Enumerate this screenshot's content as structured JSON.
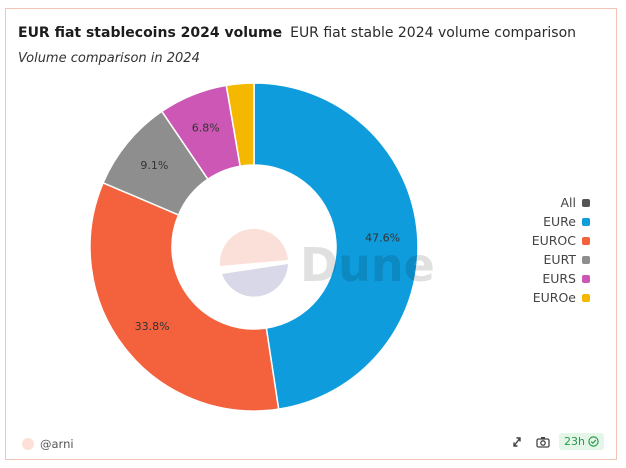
{
  "header": {
    "title": "EUR fiat stablecoins 2024 volume",
    "title_secondary": "EUR fiat stable 2024 volume comparison",
    "subtitle": "Volume comparison in 2024"
  },
  "chart_data": {
    "type": "pie",
    "donut": true,
    "slices": [
      {
        "name": "EURe",
        "value": 47.6,
        "label": "47.6%",
        "color": "#0f9cdd"
      },
      {
        "name": "EUROC",
        "value": 33.8,
        "label": "33.8%",
        "color": "#f4613d"
      },
      {
        "name": "EURT",
        "value": 9.1,
        "label": "9.1%",
        "color": "#8e8e8e"
      },
      {
        "name": "EURS",
        "value": 6.8,
        "label": "6.8%",
        "color": "#cd57b5"
      },
      {
        "name": "EUROe",
        "value": 2.7,
        "label": "",
        "color": "#f5b800"
      }
    ],
    "legend_position": "right",
    "legend": [
      {
        "label": "All",
        "color": "#555555"
      },
      {
        "label": "EURe",
        "color": "#0f9cdd"
      },
      {
        "label": "EUROC",
        "color": "#f4613d"
      },
      {
        "label": "EURT",
        "color": "#8e8e8e"
      },
      {
        "label": "EURS",
        "color": "#cd57b5"
      },
      {
        "label": "EUROe",
        "color": "#f5b800"
      }
    ],
    "watermark": "Dune"
  },
  "footer": {
    "author": "@arni",
    "refresh": "23h"
  },
  "icons": {
    "share": "share-icon",
    "camera": "camera-icon",
    "check": "check-circle-icon"
  }
}
